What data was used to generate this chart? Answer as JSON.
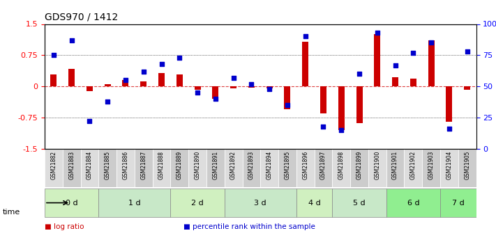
{
  "title": "GDS970 / 1412",
  "samples": [
    "GSM21882",
    "GSM21883",
    "GSM21884",
    "GSM21885",
    "GSM21886",
    "GSM21887",
    "GSM21888",
    "GSM21889",
    "GSM21890",
    "GSM21891",
    "GSM21892",
    "GSM21893",
    "GSM21894",
    "GSM21895",
    "GSM21896",
    "GSM21897",
    "GSM21898",
    "GSM21899",
    "GSM21900",
    "GSM21901",
    "GSM21902",
    "GSM21903",
    "GSM21904",
    "GSM21905"
  ],
  "log_ratio": [
    0.28,
    0.42,
    -0.12,
    0.05,
    0.15,
    0.12,
    0.32,
    0.28,
    -0.08,
    -0.3,
    -0.05,
    -0.03,
    -0.04,
    -0.55,
    1.08,
    -0.65,
    -1.05,
    -0.88,
    1.25,
    0.22,
    0.18,
    1.1,
    -0.85,
    -0.08
  ],
  "percentile_rank": [
    75,
    87,
    22,
    38,
    55,
    62,
    68,
    73,
    45,
    40,
    57,
    52,
    48,
    35,
    90,
    18,
    15,
    60,
    93,
    67,
    77,
    85,
    16,
    78
  ],
  "time_groups": [
    {
      "label": "0 d",
      "samples": [
        "GSM21882",
        "GSM21883",
        "GSM21884"
      ],
      "color": "#d0f0c0"
    },
    {
      "label": "1 d",
      "samples": [
        "GSM21885",
        "GSM21886",
        "GSM21887",
        "GSM21888"
      ],
      "color": "#c8e8c8"
    },
    {
      "label": "2 d",
      "samples": [
        "GSM21889",
        "GSM21890",
        "GSM21891"
      ],
      "color": "#d0f0c0"
    },
    {
      "label": "3 d",
      "samples": [
        "GSM21892",
        "GSM21893",
        "GSM21894",
        "GSM21895"
      ],
      "color": "#c8e8c8"
    },
    {
      "label": "4 d",
      "samples": [
        "GSM21896",
        "GSM21897"
      ],
      "color": "#d0f0c0"
    },
    {
      "label": "5 d",
      "samples": [
        "GSM21898",
        "GSM21899",
        "GSM21900"
      ],
      "color": "#c8e8c8"
    },
    {
      "label": "6 d",
      "samples": [
        "GSM21901",
        "GSM21902",
        "GSM21903"
      ],
      "color": "#90ee90"
    },
    {
      "label": "7 d",
      "samples": [
        "GSM21904",
        "GSM21905"
      ],
      "color": "#90ee90"
    }
  ],
  "bar_color_red": "#cc0000",
  "bar_color_blue": "#0000cc",
  "left_ylim": [
    -1.5,
    1.5
  ],
  "right_ylim": [
    0,
    100
  ],
  "left_yticks": [
    -1.5,
    -0.75,
    0,
    0.75,
    1.5
  ],
  "right_yticks": [
    0,
    25,
    50,
    75,
    100
  ],
  "right_yticklabels": [
    "0",
    "25",
    "50",
    "75",
    "100%"
  ],
  "hlines": [
    0.75,
    -0.75
  ],
  "zero_line_color": "#dd4444",
  "background_color": "#ffffff",
  "sample_box_color": "#cccccc",
  "legend_items": [
    {
      "color": "#cc0000",
      "label": "log ratio"
    },
    {
      "color": "#0000cc",
      "label": "percentile rank within the sample"
    }
  ]
}
